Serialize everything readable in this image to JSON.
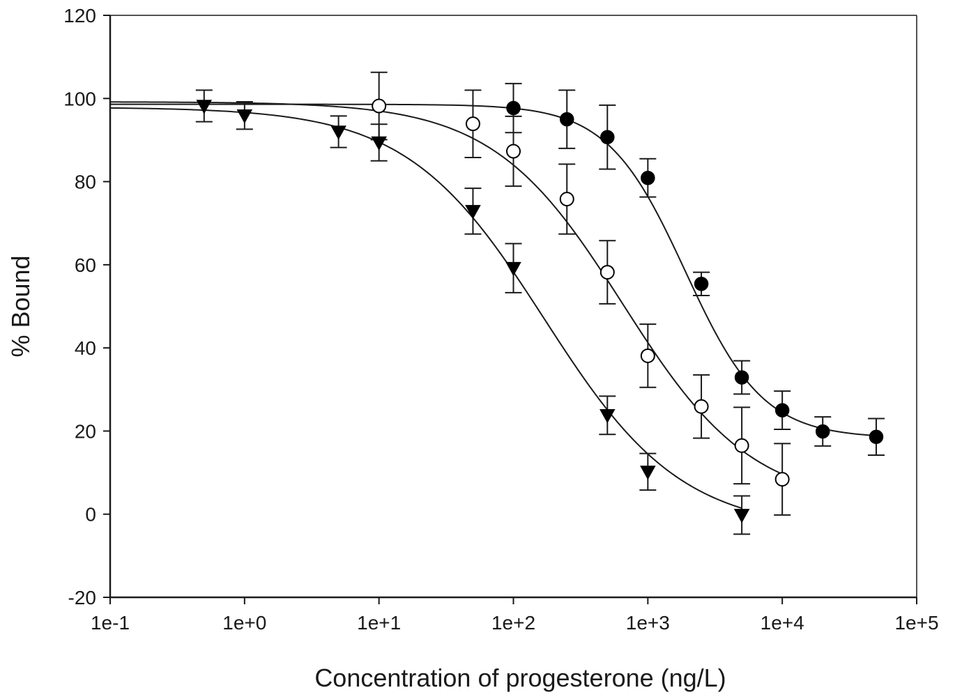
{
  "chart_data": {
    "type": "scatter",
    "title": "",
    "xlabel": "Concentration of progesterone (ng/L)",
    "ylabel": "% Bound",
    "xscale": "log",
    "xlim": [
      0.1,
      100000
    ],
    "ylim": [
      -20,
      120
    ],
    "x_tick_labels": [
      "1e-1",
      "1e+0",
      "1e+1",
      "1e+2",
      "1e+3",
      "1e+4",
      "1e+5"
    ],
    "y_tick_labels": [
      "-20",
      "0",
      "20",
      "40",
      "60",
      "80",
      "100",
      "120"
    ],
    "grid": false,
    "legend": null,
    "series": [
      {
        "name": "filled circles",
        "marker": "filled-circle",
        "x": [
          100,
          250,
          500,
          1000,
          2500,
          5000,
          10000,
          20000,
          50000
        ],
        "y": [
          97.7,
          95.0,
          90.7,
          80.9,
          55.4,
          32.9,
          25.0,
          19.9,
          18.6
        ],
        "error": [
          5.9,
          7.0,
          7.7,
          4.6,
          2.8,
          4.0,
          4.6,
          3.5,
          4.4
        ],
        "fit": {
          "top": 98.6,
          "bottom": 18.3,
          "ec50": 1900,
          "hill": 1.5
        }
      },
      {
        "name": "open circles",
        "marker": "open-circle",
        "x": [
          10,
          50,
          100,
          250,
          500,
          1000,
          2500,
          5000,
          10000
        ],
        "y": [
          98.2,
          93.9,
          87.3,
          75.8,
          58.2,
          38.1,
          25.9,
          16.5,
          8.4
        ],
        "error": [
          8.1,
          8.1,
          8.4,
          8.4,
          7.6,
          7.6,
          7.6,
          9.2,
          8.6
        ],
        "fit": {
          "top": 99.2,
          "bottom": 2.0,
          "ec50": 650,
          "hill": 0.9
        }
      },
      {
        "name": "filled triangles",
        "marker": "filled-triangle-down",
        "x": [
          0.5,
          1,
          5,
          10,
          50,
          100,
          500,
          1000,
          5000
        ],
        "y": [
          98.2,
          95.9,
          92.0,
          89.4,
          72.9,
          59.2,
          23.8,
          10.2,
          -0.2
        ],
        "error": [
          3.8,
          3.3,
          3.8,
          4.4,
          5.5,
          5.9,
          4.6,
          4.4,
          4.6
        ],
        "fit": {
          "top": 97.9,
          "bottom": -4.0,
          "ec50": 170,
          "hill": 0.85
        }
      }
    ]
  }
}
